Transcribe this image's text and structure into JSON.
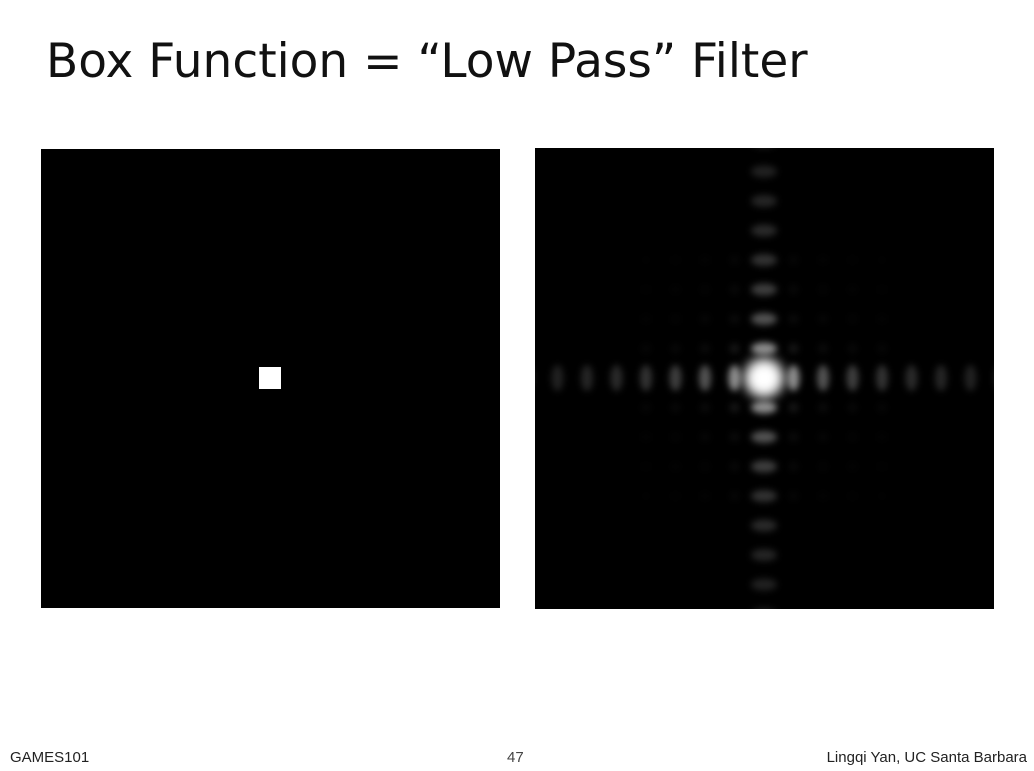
{
  "slide": {
    "title": "Box Function = “Low Pass” Filter",
    "footer_left": "GAMES101",
    "page_number": "47",
    "footer_right": "Lingqi Yan, UC Santa Barbara"
  },
  "colors": {
    "background": "#ffffff",
    "panel": "#000000",
    "signal": "#ffffff"
  }
}
